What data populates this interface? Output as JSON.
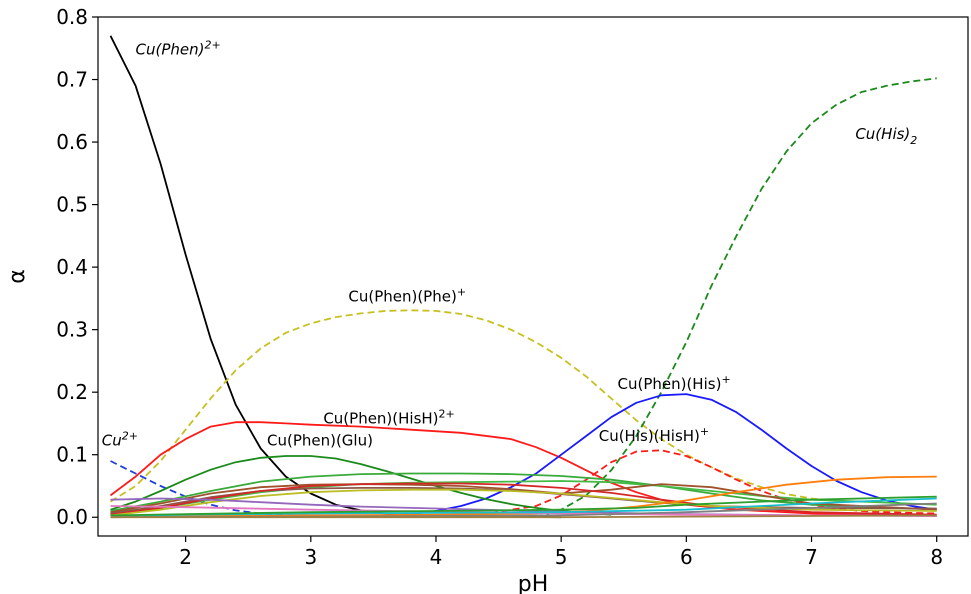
{
  "chart_data": {
    "type": "line",
    "xlabel": "pH",
    "ylabel": "α",
    "xlim": [
      1.3,
      8.25
    ],
    "ylim": [
      -0.03,
      0.8
    ],
    "xticks": [
      2,
      3,
      4,
      5,
      6,
      7,
      8
    ],
    "yticks": [
      0.0,
      0.1,
      0.2,
      0.3,
      0.4,
      0.5,
      0.6,
      0.7,
      0.8
    ],
    "ytick_labels": [
      "0.0",
      "0.1",
      "0.2",
      "0.3",
      "0.4",
      "0.5",
      "0.6",
      "0.7",
      "0.8"
    ],
    "grid": false,
    "series": [
      {
        "color": "#000000",
        "dash": false,
        "x": [
          1.4,
          1.6,
          1.8,
          2.0,
          2.2,
          2.4,
          2.6,
          2.8,
          3.0,
          3.2,
          3.4,
          3.6,
          3.8,
          4.0,
          4.2,
          4.5,
          5.0
        ],
        "y": [
          0.77,
          0.69,
          0.565,
          0.42,
          0.285,
          0.18,
          0.11,
          0.065,
          0.038,
          0.02,
          0.011,
          0.006,
          0.004,
          0.003,
          0.002,
          0.001,
          0.0
        ]
      },
      {
        "color": "#1f3fd8",
        "dash": true,
        "x": [
          1.4,
          1.6,
          1.8,
          2.0,
          2.2,
          2.4,
          2.6,
          2.8,
          3.0
        ],
        "y": [
          0.09,
          0.07,
          0.05,
          0.033,
          0.02,
          0.011,
          0.006,
          0.003,
          0.001
        ]
      },
      {
        "color": "#c8c020",
        "dash": true,
        "x": [
          1.4,
          1.6,
          1.8,
          2.0,
          2.2,
          2.4,
          2.6,
          2.8,
          3.0,
          3.2,
          3.4,
          3.6,
          3.8,
          4.0,
          4.2,
          4.4,
          4.6,
          4.8,
          5.0,
          5.2,
          5.4,
          5.6,
          5.8,
          6.0,
          6.2,
          6.4,
          6.6,
          6.8,
          7.0,
          7.1
        ],
        "y": [
          0.025,
          0.05,
          0.09,
          0.14,
          0.19,
          0.235,
          0.27,
          0.295,
          0.31,
          0.32,
          0.326,
          0.33,
          0.331,
          0.33,
          0.325,
          0.315,
          0.3,
          0.28,
          0.255,
          0.225,
          0.19,
          0.155,
          0.125,
          0.1,
          0.08,
          0.062,
          0.048,
          0.037,
          0.03,
          0.028
        ]
      },
      {
        "color": "#1a8a1a",
        "dash": true,
        "x": [
          4.8,
          5.0,
          5.2,
          5.4,
          5.6,
          5.8,
          6.0,
          6.2,
          6.4,
          6.6,
          6.8,
          7.0,
          7.2,
          7.4,
          7.6,
          7.8,
          8.0
        ],
        "y": [
          0.0,
          0.012,
          0.035,
          0.075,
          0.13,
          0.2,
          0.28,
          0.37,
          0.45,
          0.525,
          0.585,
          0.63,
          0.66,
          0.68,
          0.69,
          0.697,
          0.702
        ]
      },
      {
        "color": "#ff1a1a",
        "dash": false,
        "x": [
          1.4,
          1.6,
          1.8,
          2.0,
          2.2,
          2.4,
          2.6,
          2.8,
          3.0,
          3.4,
          3.8,
          4.2,
          4.6,
          4.8,
          5.0,
          5.2,
          5.4,
          5.6,
          5.8,
          6.0,
          6.4,
          7.0,
          8.0
        ],
        "y": [
          0.035,
          0.065,
          0.1,
          0.125,
          0.145,
          0.152,
          0.152,
          0.15,
          0.148,
          0.145,
          0.14,
          0.135,
          0.125,
          0.112,
          0.095,
          0.075,
          0.055,
          0.04,
          0.028,
          0.02,
          0.012,
          0.006,
          0.002
        ]
      },
      {
        "color": "#ff1a1a",
        "dash": true,
        "x": [
          4.0,
          4.4,
          4.8,
          5.0,
          5.2,
          5.4,
          5.6,
          5.8,
          6.0,
          6.2,
          6.4,
          6.6,
          6.8,
          7.0,
          7.2,
          7.4,
          7.6,
          7.8,
          8.0
        ],
        "y": [
          0.002,
          0.006,
          0.018,
          0.035,
          0.06,
          0.088,
          0.105,
          0.107,
          0.098,
          0.08,
          0.06,
          0.042,
          0.028,
          0.02,
          0.014,
          0.01,
          0.008,
          0.007,
          0.006
        ]
      },
      {
        "color": "#1a1aff",
        "dash": false,
        "x": [
          3.8,
          4.0,
          4.2,
          4.4,
          4.6,
          4.8,
          5.0,
          5.2,
          5.4,
          5.6,
          5.8,
          6.0,
          6.2,
          6.4,
          6.6,
          6.8,
          7.0,
          7.2,
          7.4,
          7.6,
          7.8,
          8.0
        ],
        "y": [
          0.005,
          0.01,
          0.018,
          0.03,
          0.048,
          0.07,
          0.1,
          0.13,
          0.16,
          0.183,
          0.195,
          0.197,
          0.188,
          0.168,
          0.14,
          0.11,
          0.082,
          0.058,
          0.04,
          0.027,
          0.018,
          0.012
        ]
      },
      {
        "color": "#1a8a1a",
        "dash": false,
        "x": [
          1.4,
          1.6,
          1.8,
          2.0,
          2.2,
          2.4,
          2.6,
          2.8,
          3.0,
          3.2,
          3.4,
          3.6,
          3.8,
          4.0,
          4.2,
          4.4,
          4.6,
          4.8,
          5.0,
          5.4
        ],
        "y": [
          0.012,
          0.025,
          0.042,
          0.06,
          0.076,
          0.088,
          0.095,
          0.098,
          0.098,
          0.094,
          0.085,
          0.074,
          0.062,
          0.05,
          0.039,
          0.029,
          0.021,
          0.015,
          0.01,
          0.004
        ]
      },
      {
        "color": "#3aaa3a",
        "dash": false,
        "x": [
          1.4,
          1.8,
          2.2,
          2.6,
          3.0,
          3.4,
          3.8,
          4.2,
          4.6,
          5.0,
          5.4,
          5.8,
          6.2,
          6.6,
          7.0,
          7.4,
          8.0
        ],
        "y": [
          0.01,
          0.025,
          0.042,
          0.057,
          0.065,
          0.069,
          0.07,
          0.07,
          0.069,
          0.066,
          0.06,
          0.05,
          0.038,
          0.027,
          0.02,
          0.016,
          0.013
        ]
      },
      {
        "color": "#44bb44",
        "dash": false,
        "x": [
          1.4,
          1.8,
          2.2,
          2.6,
          3.0,
          3.4,
          3.8,
          4.2,
          4.6,
          5.0,
          5.4,
          5.8,
          6.2,
          6.6,
          7.0,
          7.4,
          8.0
        ],
        "y": [
          0.005,
          0.015,
          0.028,
          0.04,
          0.048,
          0.053,
          0.055,
          0.056,
          0.057,
          0.058,
          0.056,
          0.05,
          0.042,
          0.034,
          0.028,
          0.025,
          0.02
        ]
      },
      {
        "color": "#a0522d",
        "dash": false,
        "x": [
          1.4,
          1.8,
          2.2,
          2.6,
          3.0,
          3.4,
          3.8,
          4.2,
          4.6,
          5.0,
          5.4,
          5.8,
          6.2,
          6.6,
          7.0,
          8.0
        ],
        "y": [
          0.008,
          0.022,
          0.038,
          0.048,
          0.052,
          0.053,
          0.052,
          0.05,
          0.045,
          0.038,
          0.044,
          0.053,
          0.048,
          0.035,
          0.022,
          0.012
        ]
      },
      {
        "color": "#8c564b",
        "dash": false,
        "x": [
          1.4,
          1.8,
          2.2,
          2.6,
          3.0,
          3.4,
          3.8,
          4.2,
          4.6,
          5.0,
          5.4,
          5.8,
          6.2,
          6.6,
          7.0,
          8.0
        ],
        "y": [
          0.006,
          0.018,
          0.032,
          0.042,
          0.046,
          0.047,
          0.047,
          0.046,
          0.043,
          0.037,
          0.03,
          0.023,
          0.018,
          0.016,
          0.015,
          0.014
        ]
      },
      {
        "color": "#d62728",
        "dash": false,
        "x": [
          1.4,
          1.8,
          2.2,
          2.6,
          3.0,
          3.4,
          3.8,
          4.2,
          4.6,
          5.0,
          5.4,
          5.8,
          6.2,
          7.0,
          8.0
        ],
        "y": [
          0.004,
          0.015,
          0.03,
          0.042,
          0.05,
          0.053,
          0.054,
          0.054,
          0.052,
          0.047,
          0.039,
          0.028,
          0.018,
          0.008,
          0.004
        ]
      },
      {
        "color": "#bcbd22",
        "dash": false,
        "x": [
          1.4,
          1.8,
          2.2,
          2.6,
          3.0,
          3.4,
          3.8,
          4.2,
          4.6,
          5.0,
          5.4,
          5.8,
          6.2,
          7.0,
          8.0
        ],
        "y": [
          0.003,
          0.012,
          0.024,
          0.034,
          0.04,
          0.043,
          0.044,
          0.044,
          0.042,
          0.038,
          0.031,
          0.024,
          0.018,
          0.012,
          0.01
        ]
      },
      {
        "color": "#ff7f0e",
        "dash": false,
        "x": [
          1.4,
          2.0,
          3.0,
          4.0,
          4.8,
          5.2,
          5.6,
          6.0,
          6.4,
          6.8,
          7.2,
          7.6,
          8.0
        ],
        "y": [
          0.001,
          0.002,
          0.003,
          0.004,
          0.006,
          0.01,
          0.017,
          0.027,
          0.04,
          0.052,
          0.06,
          0.064,
          0.065
        ]
      },
      {
        "color": "#9467bd",
        "dash": false,
        "x": [
          1.4,
          1.8,
          2.2,
          2.6,
          3.0,
          3.4,
          3.8,
          4.2,
          4.6,
          5.0,
          5.4,
          6.0,
          7.0,
          8.0
        ],
        "y": [
          0.028,
          0.03,
          0.028,
          0.024,
          0.02,
          0.017,
          0.015,
          0.013,
          0.011,
          0.009,
          0.007,
          0.005,
          0.003,
          0.002
        ]
      },
      {
        "color": "#e377c2",
        "dash": false,
        "x": [
          1.4,
          2.0,
          3.0,
          4.0,
          5.0,
          6.0,
          7.0,
          8.0
        ],
        "y": [
          0.018,
          0.016,
          0.012,
          0.009,
          0.006,
          0.004,
          0.003,
          0.002
        ]
      },
      {
        "color": "#17becf",
        "dash": false,
        "x": [
          1.4,
          2.0,
          3.0,
          4.0,
          5.0,
          6.0,
          6.6,
          7.0,
          7.6,
          8.0
        ],
        "y": [
          0.002,
          0.004,
          0.006,
          0.007,
          0.008,
          0.012,
          0.018,
          0.022,
          0.027,
          0.03
        ]
      },
      {
        "color": "#2ca02c",
        "dash": false,
        "x": [
          1.4,
          2.0,
          3.0,
          4.0,
          5.0,
          5.6,
          6.0,
          6.6,
          7.0,
          7.6,
          8.0
        ],
        "y": [
          0.003,
          0.005,
          0.008,
          0.01,
          0.012,
          0.015,
          0.02,
          0.025,
          0.028,
          0.031,
          0.033
        ]
      },
      {
        "color": "#7f7f7f",
        "dash": false,
        "x": [
          1.4,
          3.0,
          5.0,
          6.0,
          7.0,
          8.0
        ],
        "y": [
          0.0,
          0.001,
          0.003,
          0.008,
          0.015,
          0.022
        ]
      },
      {
        "color": "#a08040",
        "dash": false,
        "x": [
          1.4,
          3.0,
          5.0,
          6.0,
          7.0,
          8.0
        ],
        "y": [
          0.0,
          0.0,
          0.0,
          0.001,
          0.002,
          0.003
        ]
      }
    ],
    "annotations": [
      {
        "text": "Cu(Phen)",
        "sup": "2+",
        "italic": true,
        "x": 1.6,
        "y": 0.74
      },
      {
        "text": "Cu",
        "sup": "2+",
        "italic": true,
        "x": 1.33,
        "y": 0.115
      },
      {
        "text": "Cu(Phen)(Phe)",
        "sup": "+",
        "italic": false,
        "x": 3.3,
        "y": 0.345
      },
      {
        "text": "Cu(Phen)(HisH)",
        "sup": "2+",
        "italic": false,
        "x": 3.1,
        "y": 0.15
      },
      {
        "text": "Cu(Phen)(Glu)",
        "sup": "",
        "italic": false,
        "x": 2.65,
        "y": 0.115
      },
      {
        "text": "Cu(Phen)(His)",
        "sup": "+",
        "italic": false,
        "x": 5.45,
        "y": 0.205
      },
      {
        "text": "Cu(His)(HisH)",
        "sup": "+",
        "italic": false,
        "x": 5.3,
        "y": 0.122
      },
      {
        "text": "Cu(His)",
        "sub": "2",
        "italic": true,
        "x": 7.35,
        "y": 0.605
      }
    ]
  }
}
